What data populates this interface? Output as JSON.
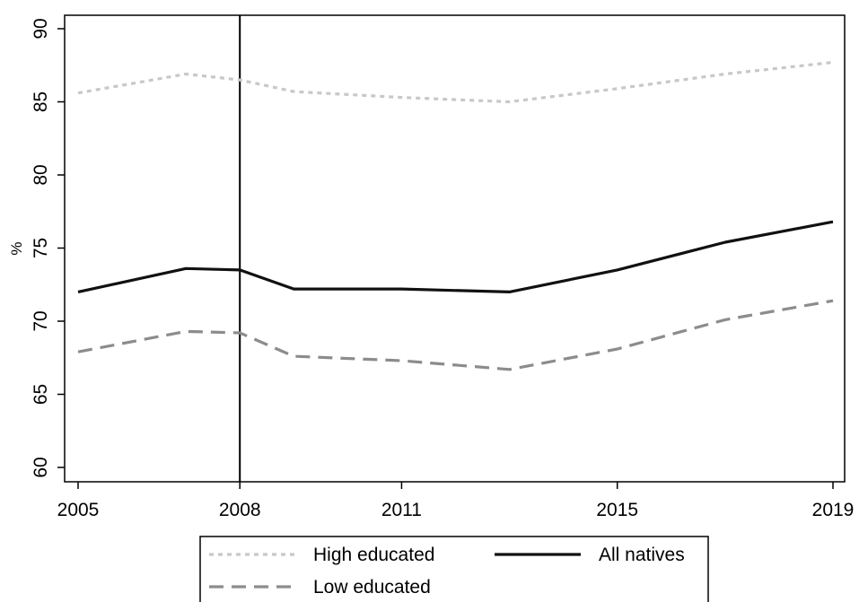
{
  "chart_data": {
    "type": "line",
    "title": "",
    "xlabel": "",
    "ylabel": "%",
    "x": [
      2005,
      2007,
      2008,
      2009,
      2011,
      2013,
      2015,
      2017,
      2019
    ],
    "xticks": [
      2005,
      2008,
      2011,
      2015,
      2019
    ],
    "yticks": [
      60,
      65,
      70,
      75,
      80,
      85,
      90
    ],
    "xlim": [
      2005,
      2019
    ],
    "ylim": [
      60,
      90
    ],
    "grid": false,
    "reference_line_x": 2008,
    "series": [
      {
        "name": "High educated",
        "style": "dotted",
        "color": "#c8c8c8",
        "values": [
          85.6,
          86.9,
          86.5,
          85.7,
          85.3,
          85.0,
          85.9,
          86.9,
          87.7
        ]
      },
      {
        "name": "All natives",
        "style": "solid",
        "color": "#111111",
        "values": [
          72.0,
          73.6,
          73.5,
          72.2,
          72.2,
          72.0,
          73.5,
          75.4,
          76.8
        ]
      },
      {
        "name": "Low educated",
        "style": "dashed",
        "color": "#8c8c8c",
        "values": [
          67.9,
          69.3,
          69.2,
          67.6,
          67.3,
          66.7,
          68.1,
          70.1,
          71.4
        ]
      }
    ],
    "legend": {
      "position": "bottom",
      "entries": [
        "High educated",
        "All natives",
        "Low educated"
      ]
    }
  }
}
